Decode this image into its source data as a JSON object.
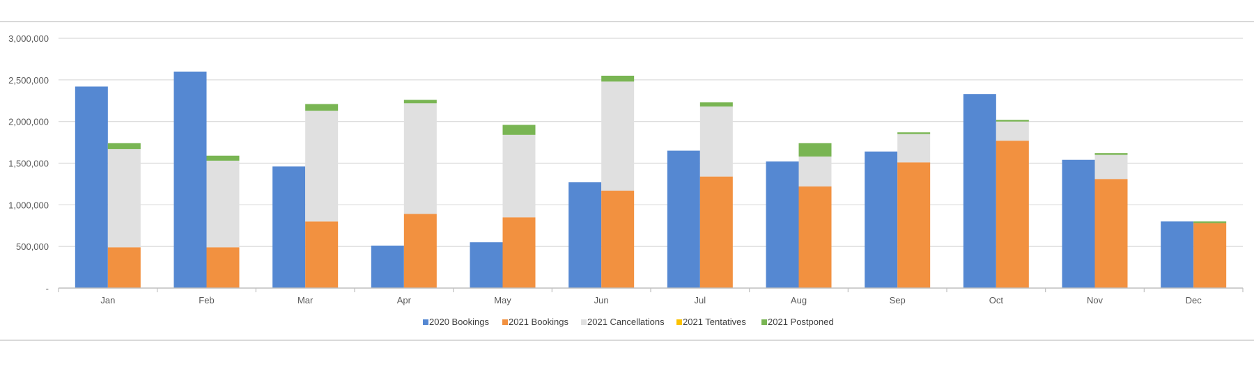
{
  "chart_data": {
    "type": "bar",
    "stacked_group": true,
    "title": "",
    "xlabel": "",
    "ylabel": "",
    "ylim": [
      0,
      3000000
    ],
    "yticks": [
      0,
      500000,
      1000000,
      1500000,
      2000000,
      2500000,
      3000000
    ],
    "ytick_labels": [
      "-",
      "500,000",
      "1,000,000",
      "1,500,000",
      "2,000,000",
      "2,500,000",
      "3,000,000"
    ],
    "grid": true,
    "legend_position": "bottom",
    "categories": [
      "Jan",
      "Feb",
      "Mar",
      "Apr",
      "May",
      "Jun",
      "Jul",
      "Aug",
      "Sep",
      "Oct",
      "Nov",
      "Dec"
    ],
    "series": [
      {
        "name": "2020 Bookings",
        "color": "#5588d2",
        "stack": "2020",
        "values": [
          2420000,
          2600000,
          1460000,
          510000,
          550000,
          1270000,
          1650000,
          1520000,
          1640000,
          2330000,
          1540000,
          800000
        ]
      },
      {
        "name": "2021 Bookings",
        "color": "#f29140",
        "stack": "2021",
        "values": [
          490000,
          490000,
          800000,
          890000,
          850000,
          1170000,
          1340000,
          1220000,
          1510000,
          1770000,
          1310000,
          780000
        ]
      },
      {
        "name": "2021 Cancellations",
        "color": "#e0e0e0",
        "stack": "2021",
        "values": [
          1180000,
          1040000,
          1330000,
          1330000,
          990000,
          1310000,
          840000,
          360000,
          340000,
          230000,
          290000,
          0
        ]
      },
      {
        "name": "2021 Tentatives",
        "color": "#fcc200",
        "stack": "2021",
        "values": [
          0,
          0,
          0,
          0,
          0,
          0,
          0,
          0,
          0,
          0,
          0,
          0
        ]
      },
      {
        "name": "2021 Postponed",
        "color": "#79b553",
        "stack": "2021",
        "values": [
          70000,
          60000,
          80000,
          40000,
          120000,
          70000,
          50000,
          160000,
          20000,
          20000,
          20000,
          20000
        ]
      }
    ]
  }
}
